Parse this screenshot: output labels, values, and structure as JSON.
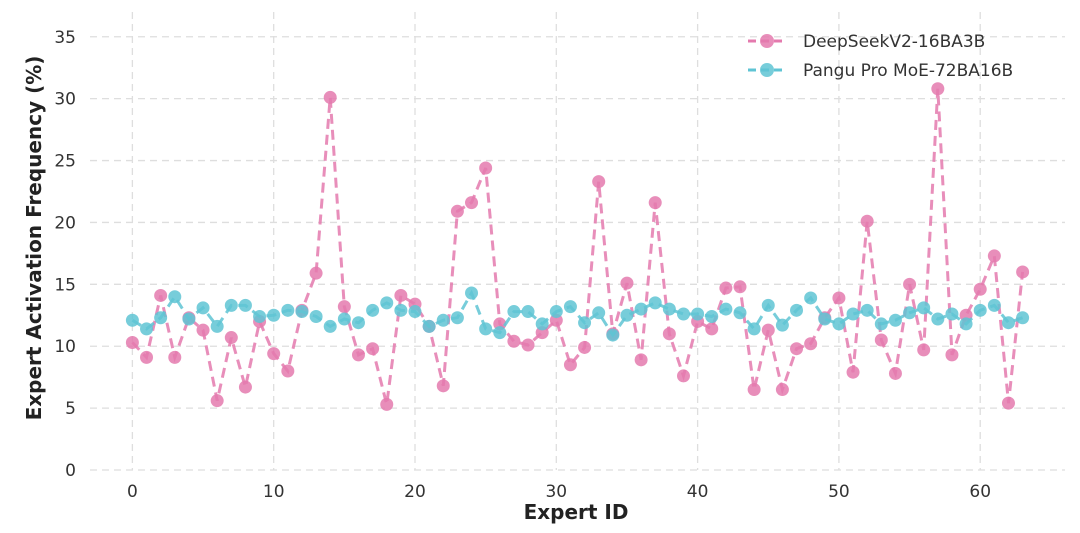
{
  "chart_data": {
    "type": "line",
    "title": "",
    "xlabel": "Expert ID",
    "ylabel": "Expert Activation Frequency (%)",
    "xlim": [
      -3,
      66
    ],
    "ylim": [
      0,
      37
    ],
    "xticks": [
      0,
      10,
      20,
      30,
      40,
      50,
      60
    ],
    "yticks": [
      0,
      5,
      10,
      15,
      20,
      25,
      30,
      35
    ],
    "grid": true,
    "legend_position": "top-right",
    "x": [
      0,
      1,
      2,
      3,
      4,
      5,
      6,
      7,
      8,
      9,
      10,
      11,
      12,
      13,
      14,
      15,
      16,
      17,
      18,
      19,
      20,
      21,
      22,
      23,
      24,
      25,
      26,
      27,
      28,
      29,
      30,
      31,
      32,
      33,
      34,
      35,
      36,
      37,
      38,
      39,
      40,
      41,
      42,
      43,
      44,
      45,
      46,
      47,
      48,
      49,
      50,
      51,
      52,
      53,
      54,
      55,
      56,
      57,
      58,
      59,
      60,
      61,
      62,
      63
    ],
    "series": [
      {
        "name": "DeepSeekV2-16BA3B",
        "color": "#e47aae",
        "line_style": "dashed",
        "marker": "circle",
        "values": [
          10.3,
          9.1,
          14.1,
          9.1,
          12.3,
          11.3,
          5.6,
          10.7,
          6.7,
          12.0,
          9.4,
          8.0,
          12.9,
          15.9,
          30.1,
          13.2,
          9.3,
          9.8,
          5.3,
          14.1,
          13.4,
          11.6,
          6.8,
          20.9,
          21.6,
          24.4,
          11.8,
          10.4,
          10.1,
          11.1,
          12.1,
          8.5,
          9.9,
          23.3,
          11.0,
          15.1,
          8.9,
          21.6,
          11.0,
          7.6,
          12.0,
          11.4,
          14.7,
          14.8,
          6.5,
          11.3,
          6.5,
          9.8,
          10.2,
          12.3,
          13.9,
          7.9,
          20.1,
          10.5,
          7.8,
          15.0,
          9.7,
          30.8,
          9.3,
          12.5,
          14.6,
          17.3,
          5.4,
          16.0
        ]
      },
      {
        "name": "Pangu Pro MoE-72BA16B",
        "color": "#5fc4d4",
        "line_style": "dashed",
        "marker": "circle",
        "values": [
          12.1,
          11.4,
          12.3,
          14.0,
          12.2,
          13.1,
          11.6,
          13.3,
          13.3,
          12.4,
          12.5,
          12.9,
          12.8,
          12.4,
          11.6,
          12.2,
          11.9,
          12.9,
          13.5,
          12.9,
          12.8,
          11.6,
          12.1,
          12.3,
          14.3,
          11.4,
          11.1,
          12.8,
          12.8,
          11.8,
          12.8,
          13.2,
          11.9,
          12.7,
          10.9,
          12.5,
          13.0,
          13.5,
          13.0,
          12.6,
          12.6,
          12.4,
          13.0,
          12.7,
          11.4,
          13.3,
          11.7,
          12.9,
          13.9,
          12.2,
          11.8,
          12.6,
          12.9,
          11.8,
          12.1,
          12.7,
          13.1,
          12.2,
          12.6,
          11.8,
          12.9,
          13.3,
          11.9,
          12.3
        ]
      }
    ]
  }
}
